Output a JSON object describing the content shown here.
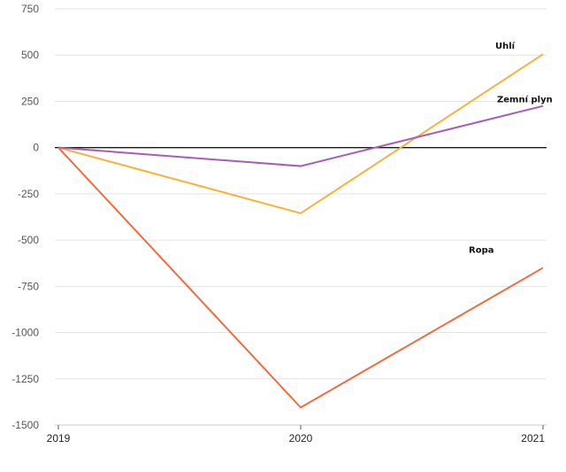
{
  "chart_data": {
    "type": "line",
    "x": [
      "2019",
      "2020",
      "2021"
    ],
    "ylim": [
      -1500,
      750
    ],
    "yticks": [
      750,
      500,
      250,
      0,
      -250,
      -500,
      -750,
      -1000,
      -1250,
      -1500
    ],
    "ytick_labels": [
      "750",
      "500",
      "250",
      "0",
      "-250",
      "-500",
      "-750",
      "-1000",
      "-1250",
      "-1500"
    ],
    "grid": "horizontal",
    "zero_line": true,
    "series": [
      {
        "name": "Uhlí",
        "color": "#f7b23b",
        "values": [
          0,
          -355,
          505
        ]
      },
      {
        "name": "Zemní plyn",
        "color": "#a45eb7",
        "values": [
          0,
          -100,
          225
        ]
      },
      {
        "name": "Ropa",
        "color": "#f26c3f",
        "values": [
          0,
          -1405,
          -650
        ]
      }
    ]
  }
}
